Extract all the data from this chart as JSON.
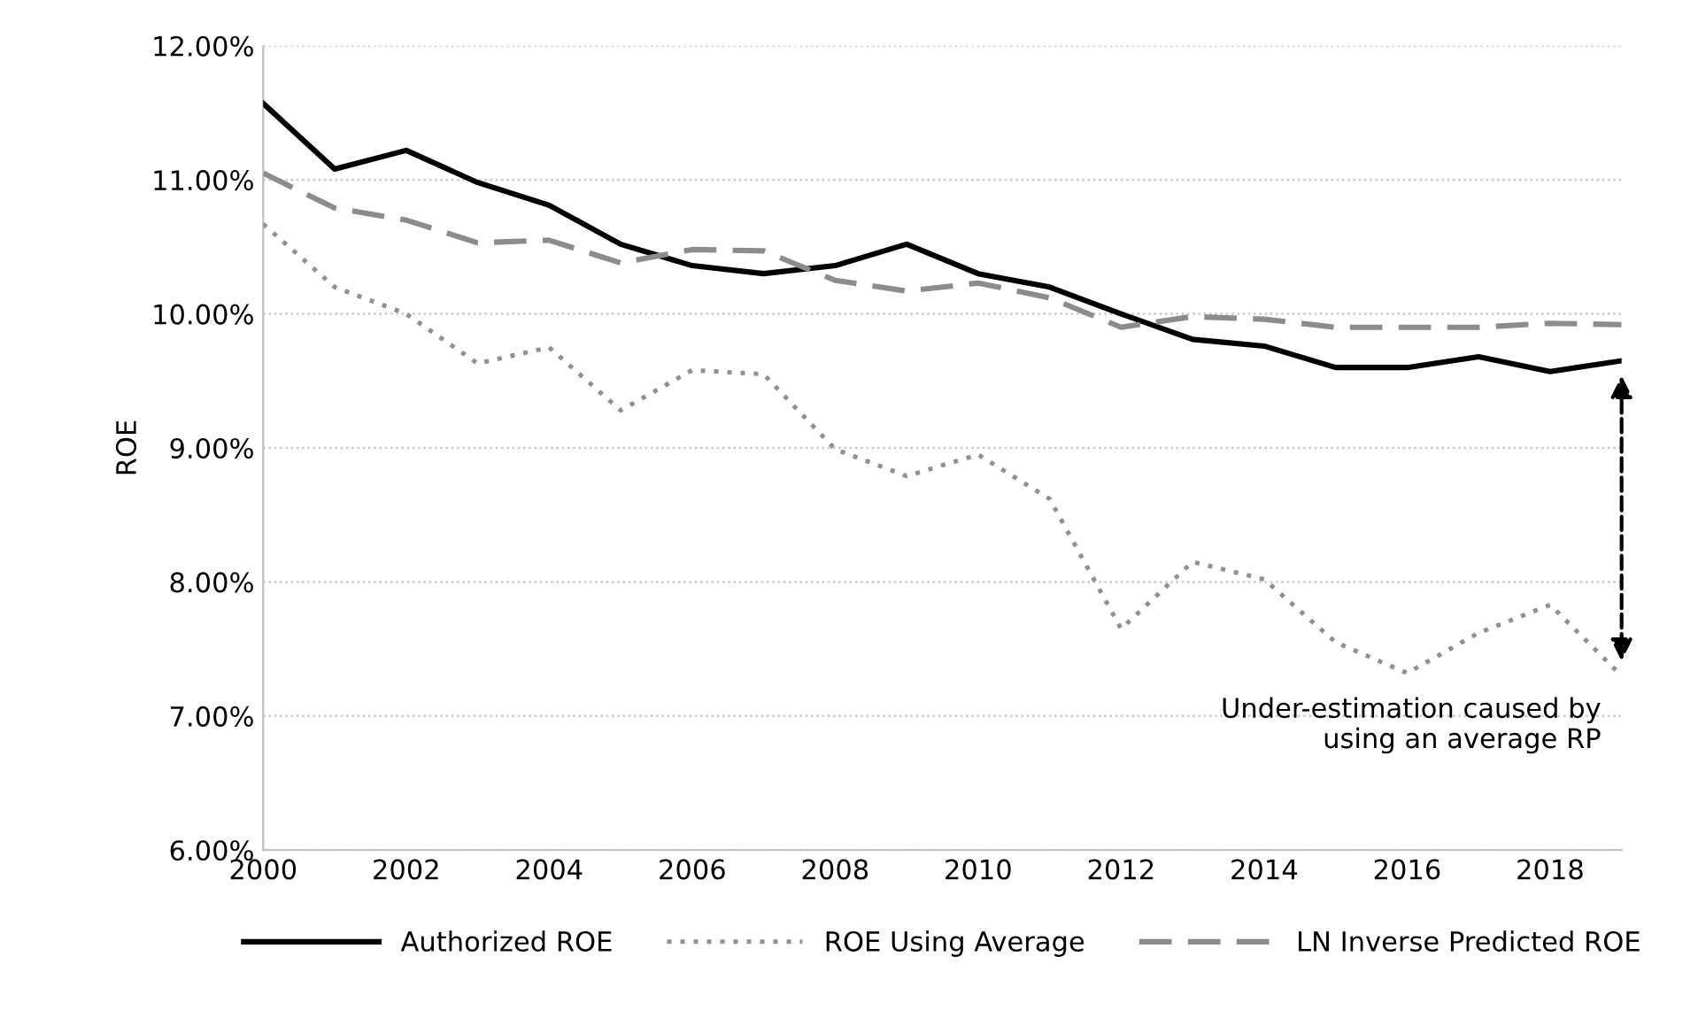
{
  "chart_data": {
    "type": "line",
    "ylabel": "ROE",
    "x": [
      2000,
      2001,
      2002,
      2003,
      2004,
      2005,
      2006,
      2007,
      2008,
      2009,
      2010,
      2011,
      2012,
      2013,
      2014,
      2015,
      2016,
      2017,
      2018,
      2019
    ],
    "series": [
      {
        "name": "Authorized ROE",
        "color": "#000000",
        "line_style": "solid",
        "values": [
          11.57,
          11.08,
          11.22,
          10.98,
          10.81,
          10.52,
          10.36,
          10.3,
          10.36,
          10.52,
          10.3,
          10.2,
          10.0,
          9.81,
          9.76,
          9.6,
          9.6,
          9.68,
          9.57,
          9.65
        ]
      },
      {
        "name": "ROE Using Average",
        "color": "#909090",
        "line_style": "dotted",
        "values": [
          10.67,
          10.2,
          10.0,
          9.63,
          9.75,
          9.28,
          9.58,
          9.55,
          8.99,
          8.79,
          8.95,
          8.62,
          7.65,
          8.15,
          8.02,
          7.55,
          7.32,
          7.62,
          7.83,
          7.3
        ]
      },
      {
        "name": "LN Inverse Predicted ROE",
        "color": "#8c8c8c",
        "line_style": "dashed",
        "values": [
          11.05,
          10.79,
          10.7,
          10.53,
          10.55,
          10.38,
          10.48,
          10.47,
          10.25,
          10.17,
          10.23,
          10.12,
          9.9,
          9.98,
          9.96,
          9.9,
          9.9,
          9.9,
          9.93,
          9.92
        ]
      }
    ],
    "xlim": [
      2000,
      2019
    ],
    "xticks": [
      2000,
      2002,
      2004,
      2006,
      2008,
      2010,
      2012,
      2014,
      2016,
      2018
    ],
    "ylim": [
      6,
      12
    ],
    "yticks": [
      {
        "value": 6,
        "label": "6.00%"
      },
      {
        "value": 7,
        "label": "7.00%"
      },
      {
        "value": 8,
        "label": "8.00%"
      },
      {
        "value": 9,
        "label": "9.00%"
      },
      {
        "value": 10,
        "label": "10.00%"
      },
      {
        "value": 11,
        "label": "11.00%"
      },
      {
        "value": 12,
        "label": "12.00%"
      }
    ],
    "grid": "y",
    "legend": "bottom",
    "annotations": [
      "Under-estimation caused by\nusing an average RP"
    ]
  }
}
